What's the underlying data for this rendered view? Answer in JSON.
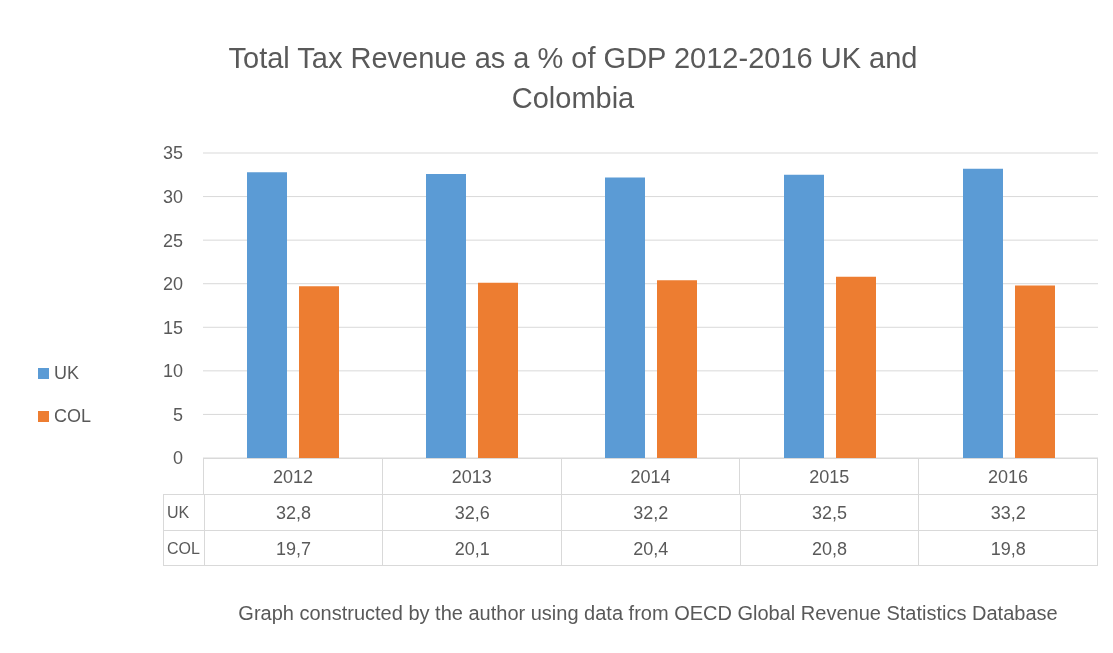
{
  "chart_data": {
    "type": "bar",
    "title": "Total Tax Revenue as a % of GDP 2012-2016 UK and Colombia",
    "categories": [
      "2012",
      "2013",
      "2014",
      "2015",
      "2016"
    ],
    "series": [
      {
        "name": "UK",
        "color": "#5b9bd5",
        "values": [
          32.8,
          32.6,
          32.2,
          32.5,
          33.2
        ],
        "value_labels": [
          "32,8",
          "32,6",
          "32,2",
          "32,5",
          "33,2"
        ]
      },
      {
        "name": "COL",
        "color": "#ed7d31",
        "values": [
          19.7,
          20.1,
          20.4,
          20.8,
          19.8
        ],
        "value_labels": [
          "19,7",
          "20,1",
          "20,4",
          "20,8",
          "19,8"
        ]
      }
    ],
    "ylim": [
      0,
      35
    ],
    "yticks": [
      0,
      5,
      10,
      15,
      20,
      25,
      30,
      35
    ],
    "grid": "y",
    "legend": "left",
    "annotations": [
      "Graph constructed by the author using data from OECD Global Revenue Statistics Database"
    ]
  }
}
